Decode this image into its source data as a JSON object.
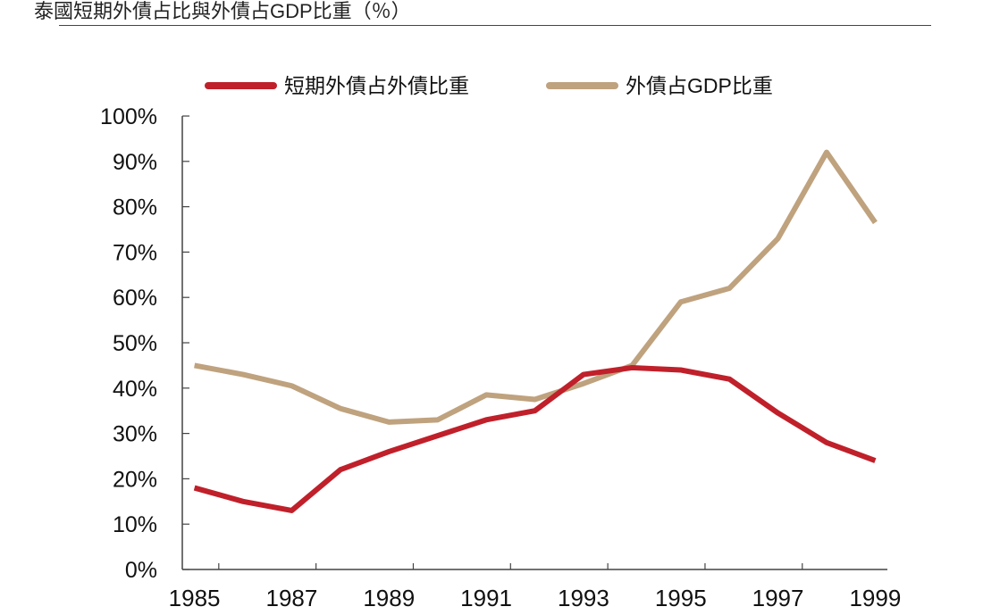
{
  "title": "泰國短期外債占比與外債占GDP比重（％）",
  "chart_data": {
    "type": "line",
    "title": "泰國短期外債占比與外債占GDP比重（％）",
    "xlabel": "",
    "ylabel": "",
    "x": [
      1985,
      1986,
      1987,
      1988,
      1989,
      1990,
      1991,
      1992,
      1993,
      1994,
      1995,
      1996,
      1997,
      1998,
      1999
    ],
    "xlim": [
      1984.75,
      1999.25
    ],
    "ylim": [
      0,
      100
    ],
    "x_tick_labels": [
      "1985",
      "1987",
      "1989",
      "1991",
      "1993",
      "1995",
      "1997",
      "1999"
    ],
    "y_tick_labels": [
      "0%",
      "10%",
      "20%",
      "30%",
      "40%",
      "50%",
      "60%",
      "70%",
      "80%",
      "90%",
      "100%"
    ],
    "legend_position": "top",
    "series": [
      {
        "name": "短期外債占外債比重",
        "color": "#C0202A",
        "values": [
          18,
          15,
          13,
          22,
          26,
          29.5,
          33,
          35,
          43,
          44.5,
          44,
          42,
          34.5,
          28,
          24
        ]
      },
      {
        "name": "外債占GDP比重",
        "color": "#BFA27E",
        "values": [
          45,
          43,
          40.5,
          35.5,
          32.5,
          33,
          38.5,
          37.5,
          41,
          45,
          59,
          62,
          73,
          92,
          76.5
        ]
      }
    ]
  }
}
